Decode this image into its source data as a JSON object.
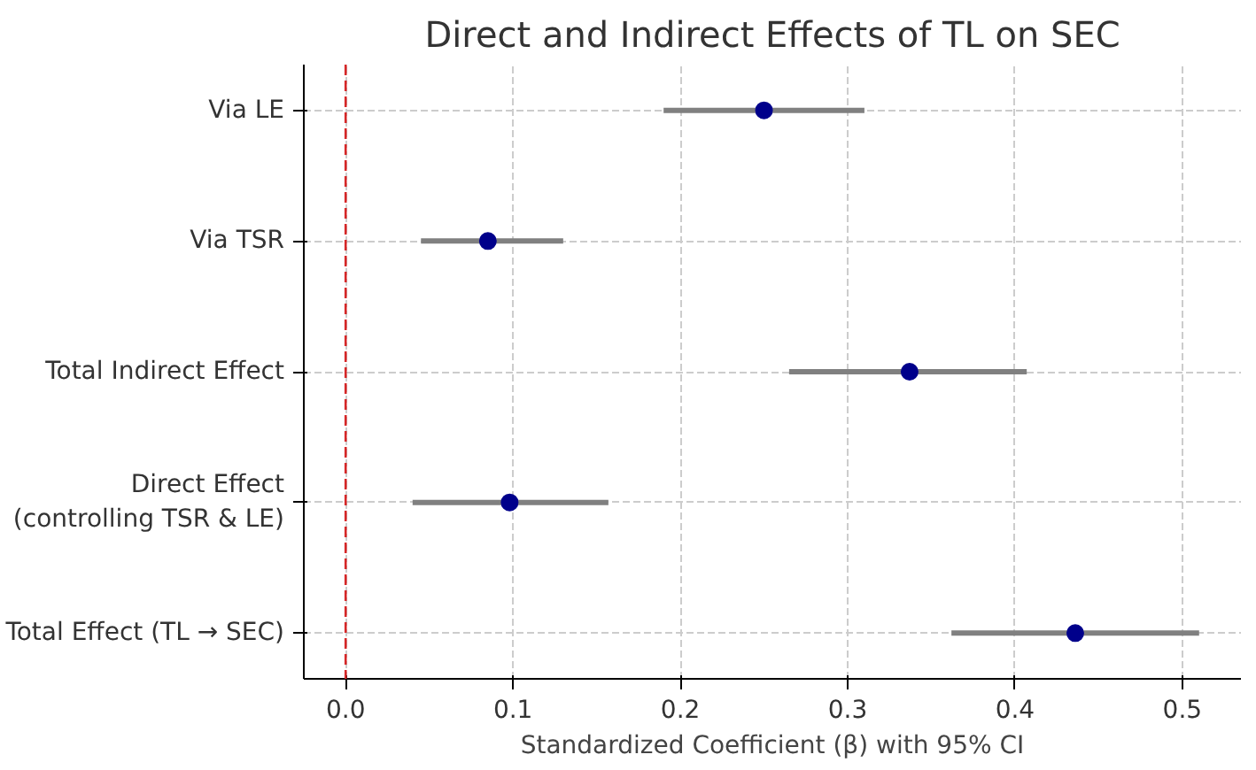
{
  "chart_data": {
    "type": "scatter",
    "orientation": "horizontal",
    "title": "Direct and Indirect Effects of TL on SEC",
    "xlabel": "Standardized Coefficient (β) with 95% CI",
    "categories": [
      "Via LE",
      "Via TSR",
      "Total Indirect Effect",
      "Direct Effect\n(controlling TSR & LE)",
      "Total Effect (TL → SEC)"
    ],
    "color": "#00008b",
    "values": [
      0.25,
      0.085,
      0.337,
      0.098,
      0.436
    ],
    "errors": [
      [
        0.19,
        0.31
      ],
      [
        0.045,
        0.13
      ],
      [
        0.265,
        0.407
      ],
      [
        0.04,
        0.157
      ],
      [
        0.362,
        0.51
      ]
    ],
    "xlim": [
      -0.025,
      0.535
    ],
    "xticks": [
      {
        "value": 0,
        "label": "0.0"
      },
      0.1,
      0.2,
      0.3,
      0.4,
      0.5
    ],
    "ref_lines": [
      {
        "axis": "x",
        "value": 0,
        "color": "#d62728",
        "line_style": "dashed"
      }
    ],
    "grid": true,
    "marker": "circle"
  }
}
